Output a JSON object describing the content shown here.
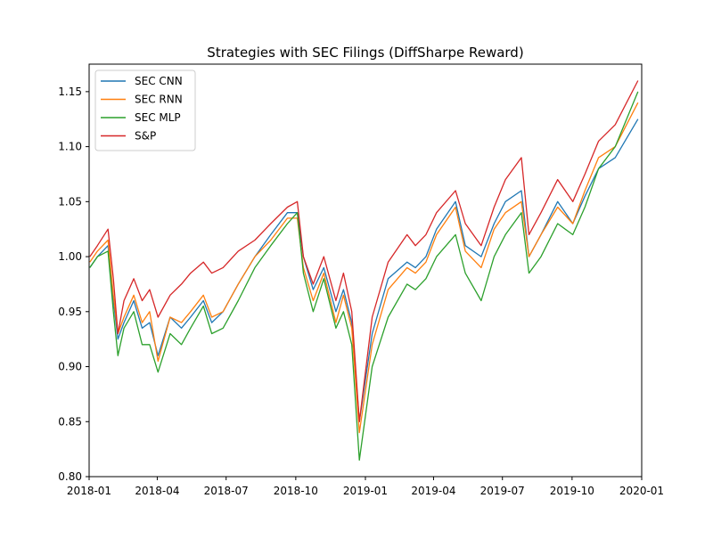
{
  "chart_data": {
    "type": "line",
    "title": "Strategies with SEC Filings (DiffSharpe Reward)",
    "xlabel": "",
    "ylabel": "",
    "xlim": [
      "2018-01-01",
      "2020-01-01"
    ],
    "ylim": [
      0.8,
      1.175
    ],
    "x_ticks": [
      {
        "date": "2018-01-01",
        "label": "2018-01"
      },
      {
        "date": "2018-04-01",
        "label": "2018-04"
      },
      {
        "date": "2018-07-01",
        "label": "2018-07"
      },
      {
        "date": "2018-10-01",
        "label": "2018-10"
      },
      {
        "date": "2019-01-01",
        "label": "2019-01"
      },
      {
        "date": "2019-04-01",
        "label": "2019-04"
      },
      {
        "date": "2019-07-01",
        "label": "2019-07"
      },
      {
        "date": "2019-10-01",
        "label": "2019-10"
      },
      {
        "date": "2020-01-01",
        "label": "2020-01"
      }
    ],
    "y_ticks": [
      {
        "value": 0.8,
        "label": "0.80"
      },
      {
        "value": 0.85,
        "label": "0.85"
      },
      {
        "value": 0.9,
        "label": "0.90"
      },
      {
        "value": 0.95,
        "label": "0.95"
      },
      {
        "value": 1.0,
        "label": "1.00"
      },
      {
        "value": 1.05,
        "label": "1.05"
      },
      {
        "value": 1.1,
        "label": "1.10"
      },
      {
        "value": 1.15,
        "label": "1.15"
      }
    ],
    "grid": false,
    "legend_position": "top-left",
    "x": [
      "2018-01-02",
      "2018-01-12",
      "2018-01-26",
      "2018-02-02",
      "2018-02-08",
      "2018-02-16",
      "2018-03-01",
      "2018-03-12",
      "2018-03-22",
      "2018-04-02",
      "2018-04-18",
      "2018-05-03",
      "2018-05-15",
      "2018-06-01",
      "2018-06-12",
      "2018-06-27",
      "2018-07-17",
      "2018-08-08",
      "2018-08-29",
      "2018-09-20",
      "2018-10-03",
      "2018-10-11",
      "2018-10-24",
      "2018-11-07",
      "2018-11-23",
      "2018-12-03",
      "2018-12-14",
      "2018-12-24",
      "2019-01-10",
      "2019-01-31",
      "2019-02-25",
      "2019-03-08",
      "2019-03-22",
      "2019-04-05",
      "2019-04-30",
      "2019-05-13",
      "2019-06-03",
      "2019-06-20",
      "2019-07-05",
      "2019-07-26",
      "2019-08-05",
      "2019-08-21",
      "2019-09-12",
      "2019-10-02",
      "2019-10-18",
      "2019-11-05",
      "2019-11-27",
      "2019-12-27"
    ],
    "series": [
      {
        "name": "SEC CNN",
        "color": "#1f77b4",
        "values": [
          0.99,
          1.0,
          1.01,
          0.96,
          0.925,
          0.94,
          0.96,
          0.935,
          0.94,
          0.91,
          0.945,
          0.935,
          0.945,
          0.96,
          0.94,
          0.95,
          0.975,
          1.0,
          1.02,
          1.04,
          1.04,
          1.0,
          0.97,
          0.99,
          0.95,
          0.97,
          0.94,
          0.85,
          0.93,
          0.98,
          0.995,
          0.99,
          1.0,
          1.025,
          1.05,
          1.01,
          1.0,
          1.03,
          1.05,
          1.06,
          1.0,
          1.02,
          1.05,
          1.03,
          1.055,
          1.08,
          1.09,
          1.125
        ]
      },
      {
        "name": "SEC RNN",
        "color": "#ff7f0e",
        "values": [
          0.995,
          1.005,
          1.015,
          0.965,
          0.93,
          0.945,
          0.965,
          0.94,
          0.95,
          0.905,
          0.945,
          0.94,
          0.95,
          0.965,
          0.945,
          0.95,
          0.975,
          1.0,
          1.015,
          1.035,
          1.035,
          0.99,
          0.96,
          0.985,
          0.94,
          0.965,
          0.935,
          0.84,
          0.92,
          0.97,
          0.99,
          0.985,
          0.995,
          1.02,
          1.045,
          1.005,
          0.99,
          1.025,
          1.04,
          1.05,
          1.0,
          1.02,
          1.045,
          1.03,
          1.06,
          1.09,
          1.1,
          1.14
        ]
      },
      {
        "name": "SEC MLP",
        "color": "#2ca02c",
        "values": [
          0.99,
          1.0,
          1.005,
          0.95,
          0.91,
          0.935,
          0.95,
          0.92,
          0.92,
          0.895,
          0.93,
          0.92,
          0.935,
          0.955,
          0.93,
          0.935,
          0.96,
          0.99,
          1.01,
          1.03,
          1.04,
          0.985,
          0.95,
          0.98,
          0.935,
          0.95,
          0.92,
          0.815,
          0.9,
          0.945,
          0.975,
          0.97,
          0.98,
          1.0,
          1.02,
          0.985,
          0.96,
          1.0,
          1.02,
          1.04,
          0.985,
          1.0,
          1.03,
          1.02,
          1.045,
          1.08,
          1.1,
          1.15
        ]
      },
      {
        "name": "S&P",
        "color": "#d62728",
        "values": [
          1.0,
          1.01,
          1.025,
          0.98,
          0.93,
          0.96,
          0.98,
          0.96,
          0.97,
          0.945,
          0.965,
          0.975,
          0.985,
          0.995,
          0.985,
          0.99,
          1.005,
          1.015,
          1.03,
          1.045,
          1.05,
          1.0,
          0.975,
          1.0,
          0.96,
          0.985,
          0.95,
          0.85,
          0.945,
          0.995,
          1.02,
          1.01,
          1.02,
          1.04,
          1.06,
          1.03,
          1.01,
          1.045,
          1.07,
          1.09,
          1.02,
          1.04,
          1.07,
          1.05,
          1.075,
          1.105,
          1.12,
          1.16
        ]
      }
    ]
  }
}
